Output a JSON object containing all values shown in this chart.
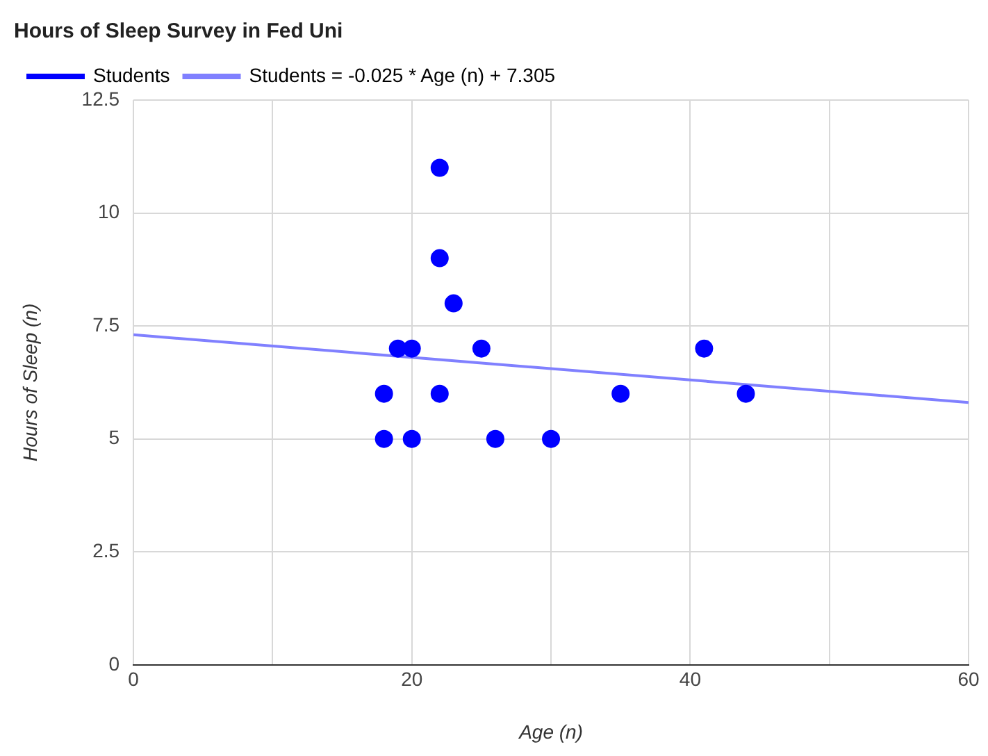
{
  "chart_data": {
    "type": "scatter",
    "title": "Hours of Sleep Survey in Fed Uni",
    "xlabel": "Age (n)",
    "ylabel": "Hours of Sleep (n)",
    "xlim": [
      0,
      60
    ],
    "xticks": [
      0,
      {
        "value": 10,
        "label": null
      },
      20,
      {
        "value": 30,
        "label": null
      },
      40,
      {
        "value": 50,
        "label": null
      },
      60
    ],
    "ylim": [
      0,
      12.5
    ],
    "yticks": [
      0,
      2.5,
      5,
      7.5,
      10,
      12.5
    ],
    "grid": true,
    "legend": "top left",
    "series": [
      {
        "name": "Students",
        "color": "#0000ff",
        "marker": "circle",
        "x": [
          18,
          18,
          19,
          20,
          20,
          22,
          22,
          22,
          23,
          25,
          26,
          30,
          35,
          41,
          44
        ],
        "values": [
          5,
          6,
          7,
          7,
          5,
          11,
          9,
          6,
          8,
          7,
          5,
          5,
          6,
          7,
          6
        ]
      },
      {
        "name": "Students = -0.025 * Age (n) + 7.305",
        "type": "line",
        "color": "#8080ff",
        "x": [
          0,
          60
        ],
        "values": [
          7.305,
          5.805
        ],
        "marker": "none"
      }
    ]
  }
}
